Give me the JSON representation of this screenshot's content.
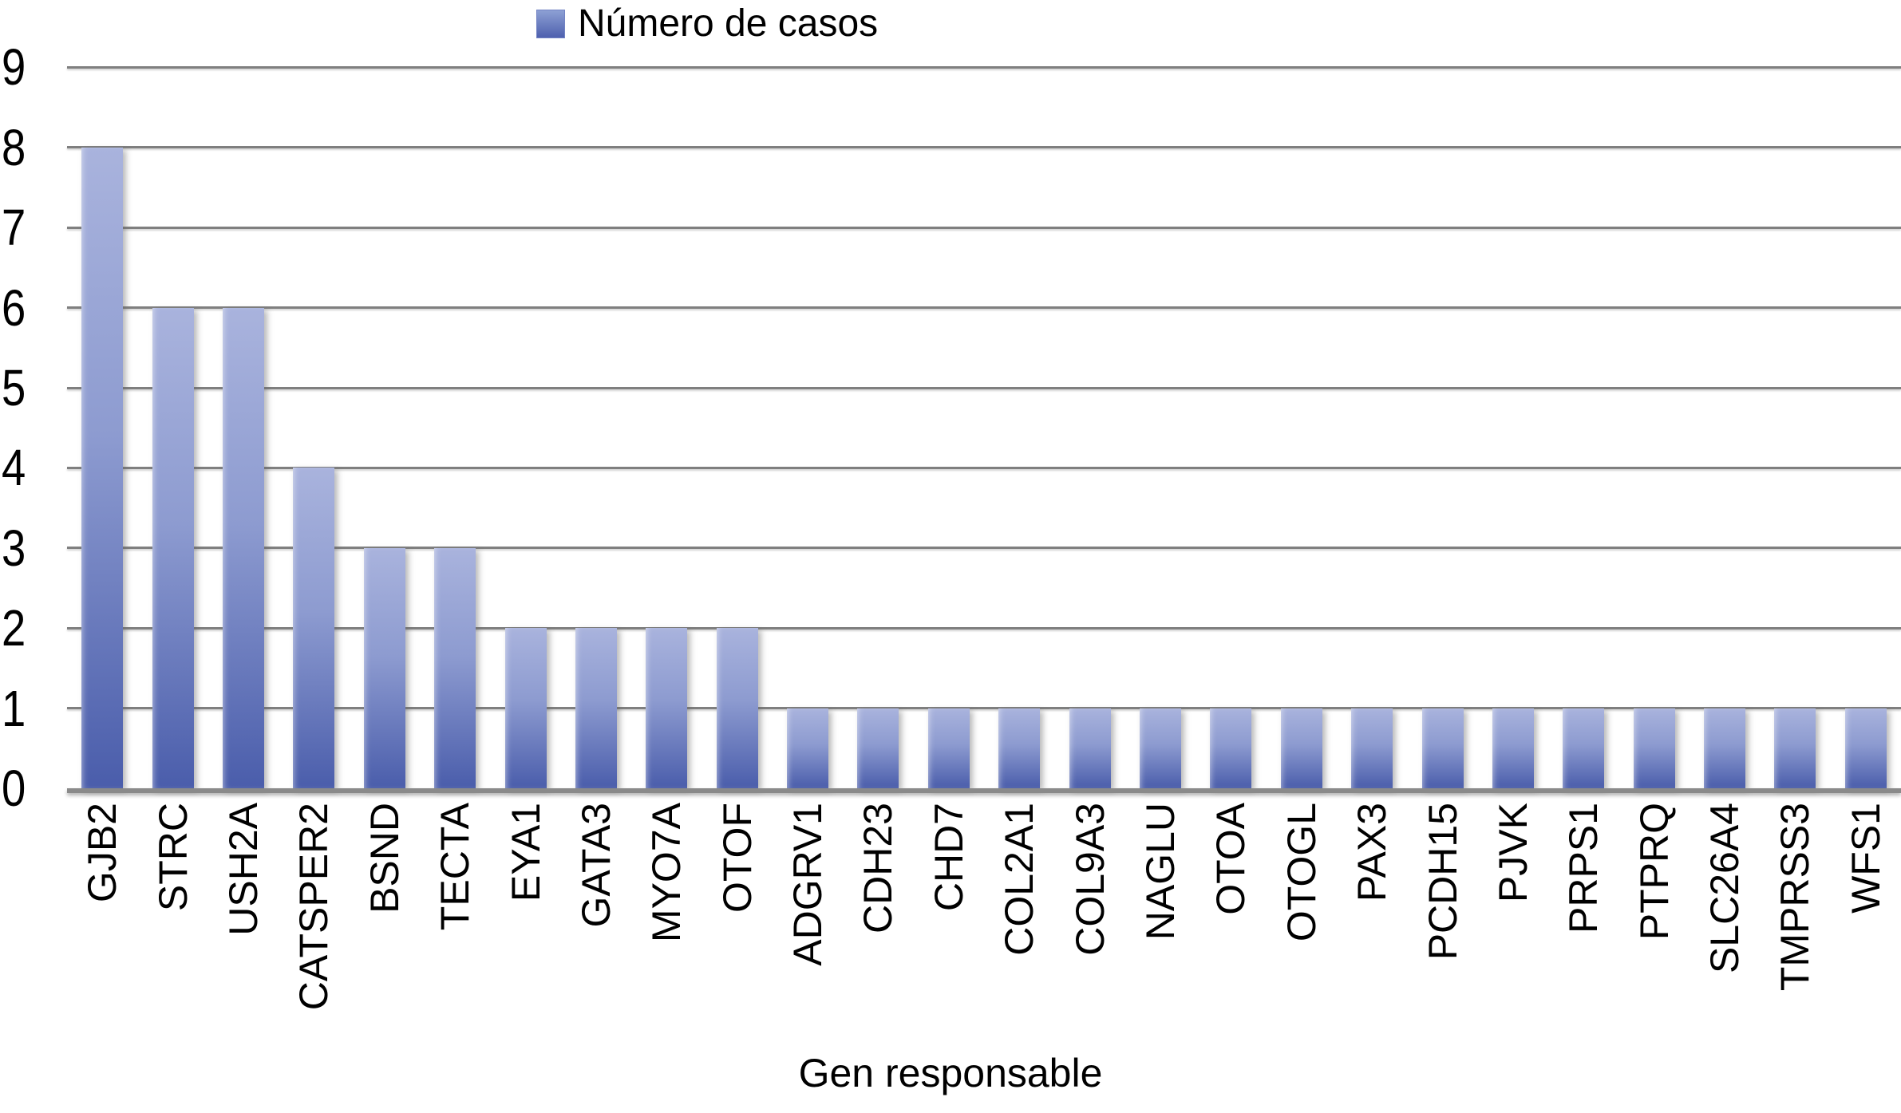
{
  "chart_data": {
    "type": "bar",
    "title": "",
    "legend": [
      "Número de casos"
    ],
    "legend_position": "top-center",
    "categories": [
      "GJB2",
      "STRC",
      "USH2A",
      "CATSPER2",
      "BSND",
      "TECTA",
      "EYA1",
      "GATA3",
      "MYO7A",
      "OTOF",
      "ADGRV1",
      "CDH23",
      "CHD7",
      "COL2A1",
      "COL9A3",
      "NAGLU",
      "OTOA",
      "OTOGL",
      "PAX3",
      "PCDH15",
      "PJVK",
      "PRPS1",
      "PTPRQ",
      "SLC26A4",
      "TMPRSS3",
      "WFS1"
    ],
    "values": [
      8,
      6,
      6,
      4,
      3,
      3,
      2,
      2,
      2,
      2,
      1,
      1,
      1,
      1,
      1,
      1,
      1,
      1,
      1,
      1,
      1,
      1,
      1,
      1,
      1,
      1
    ],
    "xlabel": "Gen responsable",
    "ylabel": "",
    "ylim": [
      0,
      9
    ],
    "yticks": [
      0,
      1,
      2,
      3,
      4,
      5,
      6,
      7,
      8,
      9
    ],
    "grid": true,
    "colors": {
      "bar_gradient_top": "#a9b3dd",
      "bar_gradient_bottom": "#4a5dab",
      "gridline": "#7f7f7f",
      "axis_line": "#8a8a8a",
      "text": "#000000"
    }
  }
}
